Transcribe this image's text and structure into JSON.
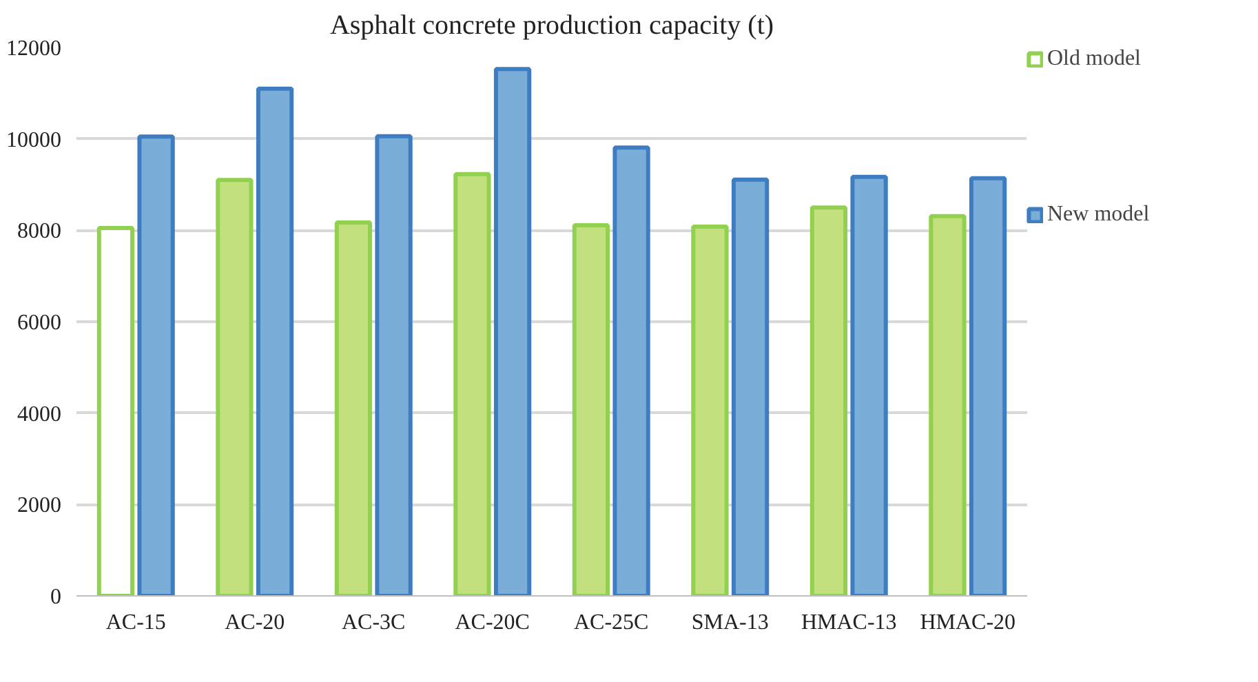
{
  "chart_data": {
    "type": "bar",
    "title": "Asphalt concrete production capacity (t)",
    "categories": [
      "AC-15",
      "AC-20",
      "AC-3C",
      "AC-20C",
      "AC-25C",
      "SMA-13",
      "HMAC-13",
      "HMAC-20"
    ],
    "series": [
      {
        "name": "Old model",
        "color": "#92d050",
        "colors": [
          "#ffffff",
          "#c3e07e",
          "#c3e07e",
          "#c3e07e",
          "#c3e07e",
          "#c3e07e",
          "#c3e07e",
          "#c3e07e"
        ],
        "values": [
          8050,
          9100,
          8170,
          9230,
          8110,
          8080,
          8500,
          8310
        ]
      },
      {
        "name": "New model",
        "color": "#3e7dc1",
        "colors": [
          "#7aaed8",
          "#7aaed8",
          "#7aaed8",
          "#7aaed8",
          "#7aaed8",
          "#7aaed8",
          "#7aaed8",
          "#7aaed8"
        ],
        "values": [
          10050,
          11100,
          10060,
          11530,
          9810,
          9110,
          9170,
          9140
        ]
      }
    ],
    "ylim": [
      0,
      12000
    ],
    "yticks": [
      0,
      2000,
      4000,
      6000,
      8000,
      10000,
      12000
    ],
    "grid": "y",
    "legend": "right"
  }
}
